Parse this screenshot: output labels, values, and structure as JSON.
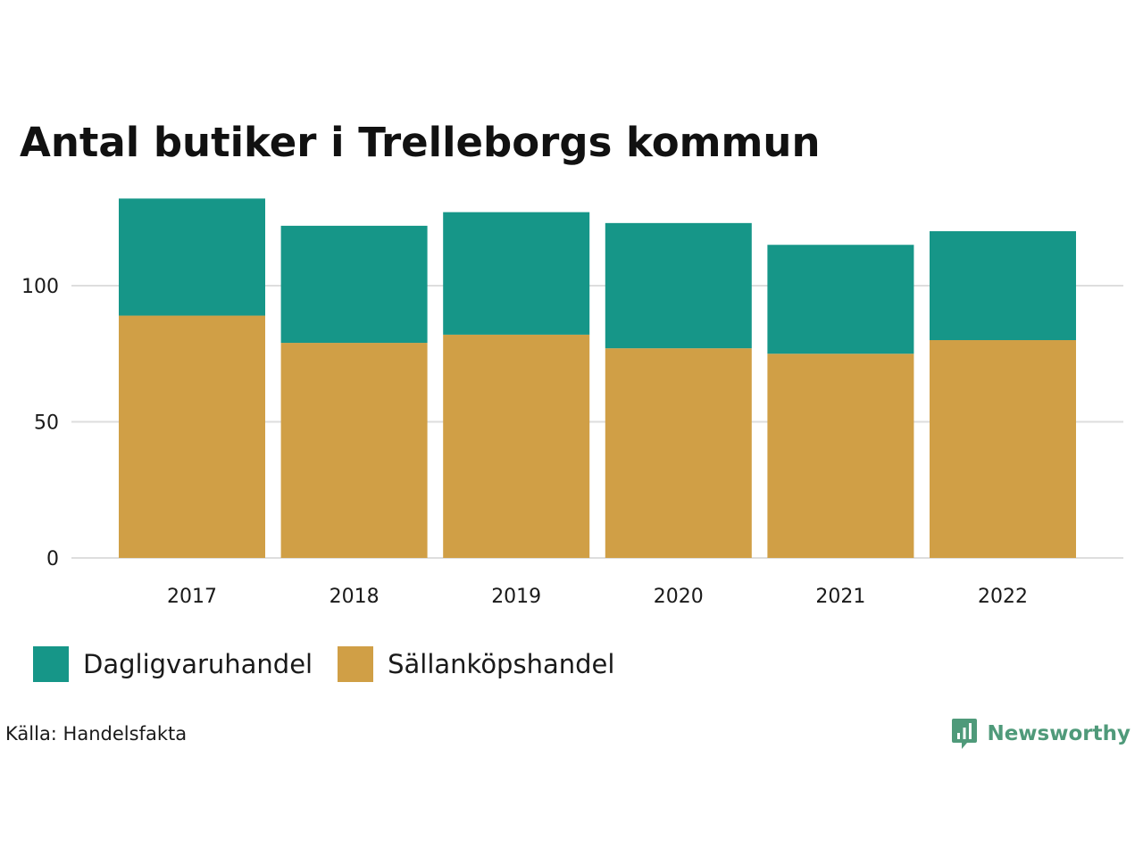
{
  "chart_data": {
    "type": "bar",
    "stacked": true,
    "title": "Antal butiker i Trelleborgs kommun",
    "xlabel": "",
    "ylabel": "",
    "categories": [
      "2017",
      "2018",
      "2019",
      "2020",
      "2021",
      "2022"
    ],
    "series": [
      {
        "name": "Sällanköpshandel",
        "color": "#d09f46",
        "values": [
          89,
          79,
          82,
          77,
          75,
          80
        ]
      },
      {
        "name": "Dagligvaruhandel",
        "color": "#169688",
        "values": [
          43,
          43,
          45,
          46,
          40,
          40
        ]
      }
    ],
    "ylim": [
      0,
      132
    ],
    "yticks": [
      0,
      50,
      100
    ],
    "grid": true,
    "legend_position": "bottom-left"
  },
  "legend": {
    "items": [
      {
        "label": "Dagligvaruhandel",
        "color": "#169688"
      },
      {
        "label": "Sällanköpshandel",
        "color": "#d09f46"
      }
    ]
  },
  "source": "Källa: Handelsfakta",
  "brand": {
    "name": "Newsworthy",
    "icon": "newsworthy-logo-icon",
    "color": "#4f9a7a"
  }
}
